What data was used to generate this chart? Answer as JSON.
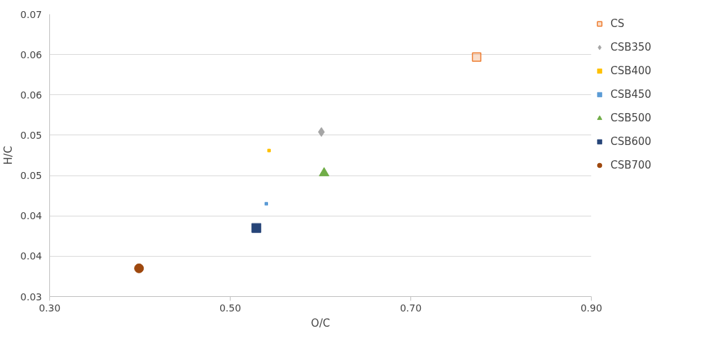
{
  "chart_data": {
    "type": "scatter",
    "xlabel": "O/C",
    "ylabel": "H/C",
    "xlim": [
      0.3,
      0.9
    ],
    "xticks": [
      {
        "value": 0.3,
        "label": "0.30"
      },
      {
        "value": 0.5,
        "label": "0.50"
      },
      {
        "value": 0.7,
        "label": "0.70"
      },
      {
        "value": 0.9,
        "label": "0.90"
      }
    ],
    "ylim": [
      0.03,
      0.065
    ],
    "yticks": [
      {
        "value": 0.03,
        "label": "0.03"
      },
      {
        "value": 0.035,
        "label": "0.04"
      },
      {
        "value": 0.04,
        "label": "0.04"
      },
      {
        "value": 0.045,
        "label": "0.05"
      },
      {
        "value": 0.05,
        "label": "0.05"
      },
      {
        "value": 0.055,
        "label": "0.06"
      },
      {
        "value": 0.06,
        "label": "0.06"
      },
      {
        "value": 0.065,
        "label": "0.07"
      }
    ],
    "grid": "y",
    "legend": "right",
    "series": [
      {
        "name": "CS",
        "color": "#ed7d31",
        "marker": "square",
        "x": [
          0.773
        ],
        "values": [
          0.0597
        ]
      },
      {
        "name": "CSB350",
        "color": "#a5a5a5",
        "marker": "diamond",
        "x": [
          0.601
        ],
        "values": [
          0.0504
        ]
      },
      {
        "name": "CSB400",
        "color": "#ffc000",
        "marker": "square",
        "x": [
          0.543
        ],
        "values": [
          0.0481
        ]
      },
      {
        "name": "CSB450",
        "color": "#5b9bd5",
        "marker": "square",
        "x": [
          0.54
        ],
        "values": [
          0.0415
        ]
      },
      {
        "name": "CSB500",
        "color": "#70ad47",
        "marker": "triangle",
        "x": [
          0.604
        ],
        "values": [
          0.0453
        ]
      },
      {
        "name": "CSB600",
        "color": "#264478",
        "marker": "square",
        "x": [
          0.529
        ],
        "values": [
          0.0385
        ]
      },
      {
        "name": "CSB700",
        "color": "#9e480e",
        "marker": "circle",
        "x": [
          0.399
        ],
        "values": [
          0.0335
        ]
      }
    ]
  }
}
